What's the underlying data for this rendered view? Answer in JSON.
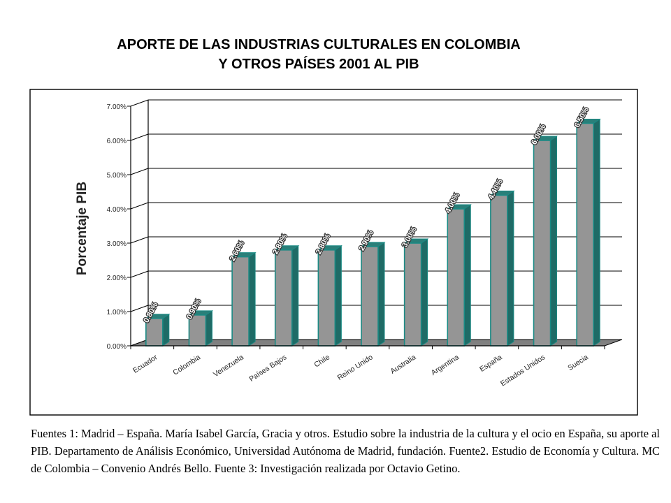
{
  "title_line1": "APORTE DE LAS INDUSTRIAS CULTURALES EN COLOMBIA",
  "title_line2": "Y OTROS PAÍSES 2001 AL PIB",
  "chart_data": {
    "type": "bar",
    "ylabel": "Porcentaje PIB",
    "ylim": [
      0,
      7
    ],
    "yticks": [
      "0.00%",
      "1.00%",
      "2.00%",
      "3.00%",
      "4.00%",
      "5.00%",
      "6.00%",
      "7.00%"
    ],
    "categories": [
      "Ecuador",
      "Colombia",
      "Venezuela",
      "Países Bajos",
      "Chile",
      "Reino Unido",
      "Australia",
      "Argentina",
      "España",
      "Estados Unidos",
      "Suecia"
    ],
    "values": [
      0.8,
      0.9,
      2.6,
      2.8,
      2.8,
      2.9,
      3.0,
      4.0,
      4.4,
      6.0,
      6.5
    ],
    "data_labels": [
      "0.80%",
      "0.90%",
      "2.60%",
      "2.80%",
      "2.80%",
      "2.90%",
      "3.00%",
      "4.00%",
      "4.40%",
      "6.00%",
      "6.50%"
    ],
    "grid": true,
    "colors": {
      "bar_front": "#959595",
      "bar_side": "#1f6b66",
      "bar_edge": "#1a8a84",
      "floor": "#808080"
    }
  },
  "sources_text": "Fuentes 1: Madrid – España. María Isabel García, Gracia y otros. Estudio sobre la industria   de la cultura y el ocio en España, su aporte al PIB. Departamento de Análisis Económico,  Universidad Autónoma de Madrid, fundación. Fuente2. Estudio de Economía y Cultura. MC  de Colombia – Convenio Andrés Bello. Fuente 3: Investigación realizada por Octavio Getino."
}
